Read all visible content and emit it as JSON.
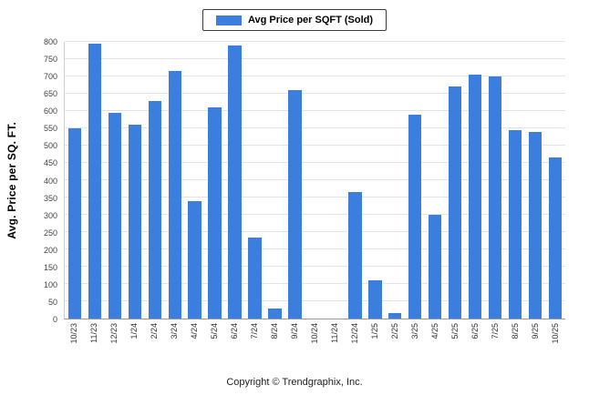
{
  "legend": {
    "label": "Avg Price per SQFT (Sold)",
    "swatch_color": "#3b7edd"
  },
  "footer": {
    "copyright": "Copyright © Trendgraphix, Inc."
  },
  "chart_data": {
    "type": "bar",
    "title": "Avg Price per SQFT (Sold)",
    "xlabel": "",
    "ylabel": "Avg. Price per SQ. FT.",
    "ylim": [
      0,
      800
    ],
    "ytick_step": 50,
    "grid": true,
    "legend_position": "top",
    "bar_color": "#3b7edd",
    "categories": [
      "10/23",
      "11/23",
      "12/23",
      "1/24",
      "2/24",
      "3/24",
      "4/24",
      "5/24",
      "6/24",
      "7/24",
      "8/24",
      "9/24",
      "10/24",
      "11/24",
      "12/24",
      "1/25",
      "2/25",
      "3/25",
      "4/25",
      "5/25",
      "6/25",
      "7/25",
      "8/25",
      "9/25",
      "10/25"
    ],
    "values": [
      550,
      795,
      595,
      560,
      630,
      715,
      340,
      610,
      790,
      235,
      30,
      660,
      0,
      0,
      365,
      110,
      15,
      590,
      300,
      670,
      705,
      700,
      545,
      540,
      465
    ]
  }
}
